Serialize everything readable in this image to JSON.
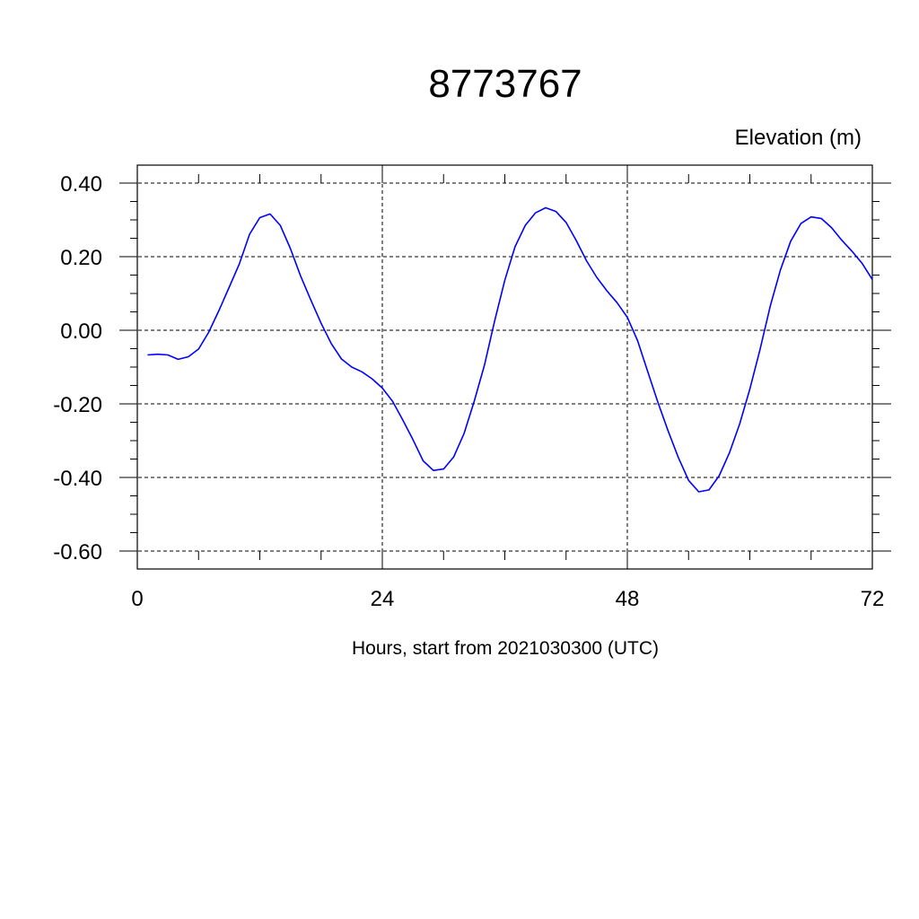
{
  "chart_data": {
    "type": "line",
    "title": "8773767",
    "ylabel": "Elevation (m)",
    "xlabel": "Hours, start from 2021030300 (UTC)",
    "xlim": [
      0,
      72
    ],
    "ylim": [
      -0.6,
      0.4
    ],
    "x_ticks": [
      0,
      24,
      48,
      72
    ],
    "x_tick_labels": [
      "0",
      "24",
      "48",
      "72"
    ],
    "y_ticks": [
      0.4,
      0.2,
      0.0,
      -0.2,
      -0.4,
      -0.6
    ],
    "y_tick_labels": [
      "0.40",
      "0.20",
      "0.00",
      "-0.20",
      "-0.40",
      "-0.60"
    ],
    "grid": true,
    "series": [
      {
        "color": "#0000ff",
        "x": [
          1,
          2,
          3,
          4,
          5,
          6,
          7,
          8,
          9,
          10,
          11,
          12,
          13,
          14,
          15,
          16,
          17,
          18,
          19,
          20,
          21,
          22,
          23,
          24,
          25,
          26,
          27,
          28,
          29,
          30,
          31,
          32,
          33,
          34,
          35,
          36,
          37,
          38,
          39,
          40,
          41,
          42,
          43,
          44,
          45,
          46,
          47,
          48,
          49,
          50,
          51,
          52,
          53,
          54,
          55,
          56,
          57,
          58,
          59,
          60,
          61,
          62,
          63,
          64,
          65,
          66,
          67,
          68,
          69,
          70,
          71,
          72
        ],
        "y": [
          -0.067,
          -0.065,
          -0.067,
          -0.079,
          -0.072,
          -0.051,
          -0.005,
          0.054,
          0.117,
          0.181,
          0.261,
          0.306,
          0.316,
          0.285,
          0.222,
          0.147,
          0.082,
          0.019,
          -0.036,
          -0.078,
          -0.1,
          -0.113,
          -0.132,
          -0.157,
          -0.193,
          -0.244,
          -0.297,
          -0.355,
          -0.381,
          -0.377,
          -0.344,
          -0.281,
          -0.193,
          -0.095,
          0.025,
          0.136,
          0.227,
          0.285,
          0.319,
          0.333,
          0.323,
          0.293,
          0.244,
          0.189,
          0.144,
          0.107,
          0.075,
          0.035,
          -0.028,
          -0.113,
          -0.196,
          -0.274,
          -0.346,
          -0.408,
          -0.439,
          -0.434,
          -0.395,
          -0.333,
          -0.255,
          -0.16,
          -0.052,
          0.066,
          0.164,
          0.242,
          0.29,
          0.308,
          0.304,
          0.279,
          0.245,
          0.215,
          0.182,
          0.138
        ]
      }
    ]
  }
}
